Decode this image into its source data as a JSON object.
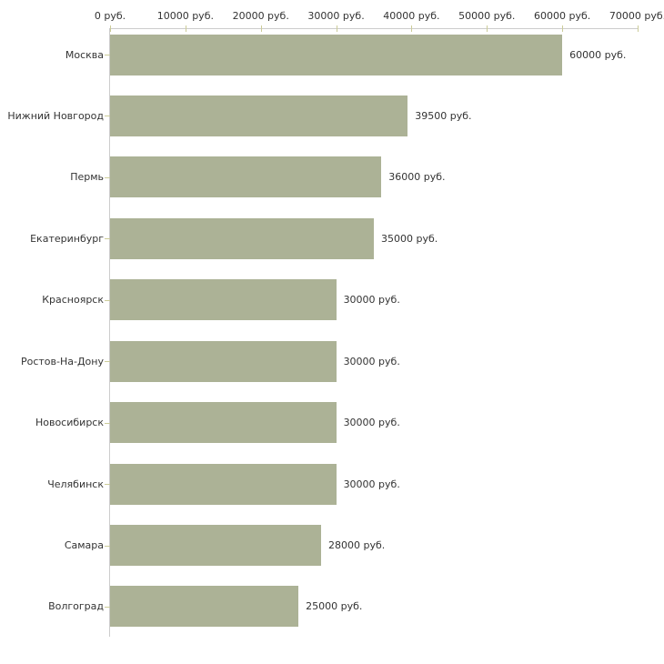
{
  "chart_data": {
    "type": "bar",
    "orientation": "horizontal",
    "categories": [
      "Москва",
      "Нижний Новгород",
      "Пермь",
      "Екатеринбург",
      "Красноярск",
      "Ростов-На-Дону",
      "Новосибирск",
      "Челябинск",
      "Самара",
      "Волгоград"
    ],
    "values": [
      60000,
      39500,
      36000,
      35000,
      30000,
      30000,
      30000,
      30000,
      28000,
      25000
    ],
    "bar_labels": [
      "60000 руб.",
      "39500 руб.",
      "36000 руб.",
      "35000 руб.",
      "30000 руб.",
      "30000 руб.",
      "30000 руб.",
      "30000 руб.",
      "28000 руб.",
      "25000 руб."
    ],
    "x_tick_values": [
      0,
      10000,
      20000,
      30000,
      40000,
      50000,
      60000,
      70000
    ],
    "x_tick_labels": [
      "0 руб.",
      "10000 руб.",
      "20000 руб.",
      "30000 руб.",
      "40000 руб.",
      "50000 руб.",
      "60000 руб.",
      "70000 руб."
    ],
    "xlim": [
      0,
      70000
    ],
    "unit": "руб.",
    "title": "",
    "xlabel": "",
    "ylabel": "",
    "grid": false,
    "legend": "none",
    "axis_position": "top",
    "colors": {
      "bar": "#acb296",
      "axis_line": "#cccccc",
      "tick_mark": "#cccc99",
      "text": "#333333",
      "background": "#ffffff"
    }
  }
}
